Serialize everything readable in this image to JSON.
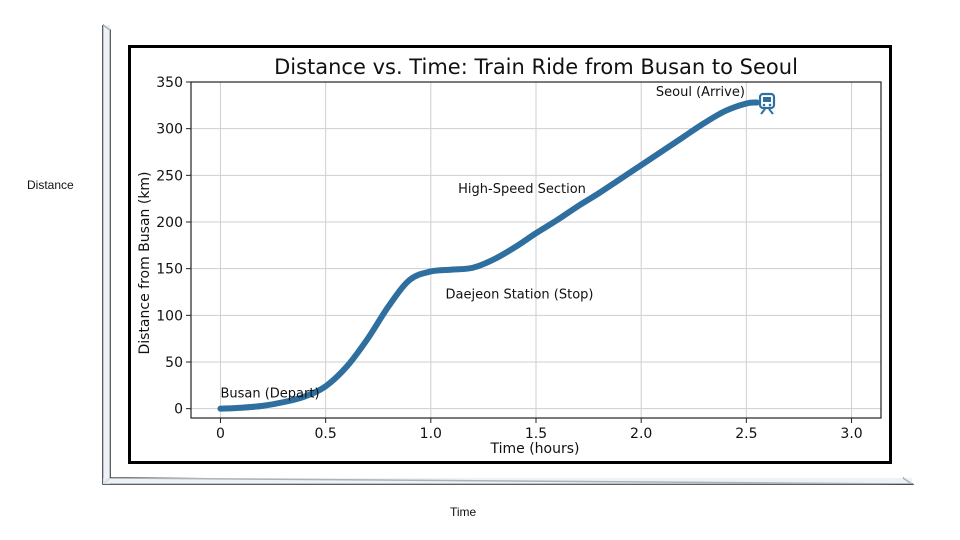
{
  "outer": {
    "ylabel": "Distance",
    "xlabel": "Time"
  },
  "icons": {
    "arrival": "train-icon"
  },
  "colors": {
    "line": "#2f6f9f",
    "grid": "#cfcfcf",
    "frame": "#2a2a2a"
  },
  "chart_data": {
    "type": "line",
    "title": "Distance vs. Time: Train Ride from Busan to Seoul",
    "xlabel": "Time (hours)",
    "ylabel": "Distance from Busan (km)",
    "xlim": [
      -0.14,
      3.14
    ],
    "ylim": [
      -10,
      350
    ],
    "xticks": [
      0,
      0.5,
      1.0,
      1.5,
      2.0,
      2.5,
      3.0
    ],
    "xtick_labels": [
      "0",
      "0.5",
      "1.0",
      "1.5",
      "2.0",
      "2.5",
      "3.0"
    ],
    "yticks": [
      0,
      50,
      100,
      150,
      200,
      250,
      300,
      350
    ],
    "ytick_labels": [
      "0",
      "50",
      "100",
      "150",
      "200",
      "250",
      "300",
      "350"
    ],
    "grid": true,
    "series": [
      {
        "x": [
          0,
          0.1,
          0.2,
          0.3,
          0.4,
          0.5,
          0.6,
          0.7,
          0.8,
          0.9,
          1.0,
          1.1,
          1.2,
          1.3,
          1.4,
          1.5,
          1.6,
          1.7,
          1.8,
          1.9,
          2.0,
          2.1,
          2.2,
          2.3,
          2.4,
          2.5,
          2.55
        ],
        "y": [
          0,
          1,
          3,
          7,
          13,
          24,
          45,
          75,
          110,
          138,
          147,
          149,
          151,
          160,
          173,
          188,
          202,
          217,
          231,
          246,
          261,
          276,
          291,
          306,
          319,
          327,
          328
        ]
      }
    ],
    "annotations": [
      {
        "text": "Busan (Depart)",
        "x": 0.0,
        "y": 12
      },
      {
        "text": "Daejeon Station (Stop)",
        "x": 1.07,
        "y": 118
      },
      {
        "text": "High-Speed Section",
        "x": 1.13,
        "y": 231
      },
      {
        "text": "Seoul (Arrive)",
        "x": 2.07,
        "y": 335
      }
    ]
  }
}
